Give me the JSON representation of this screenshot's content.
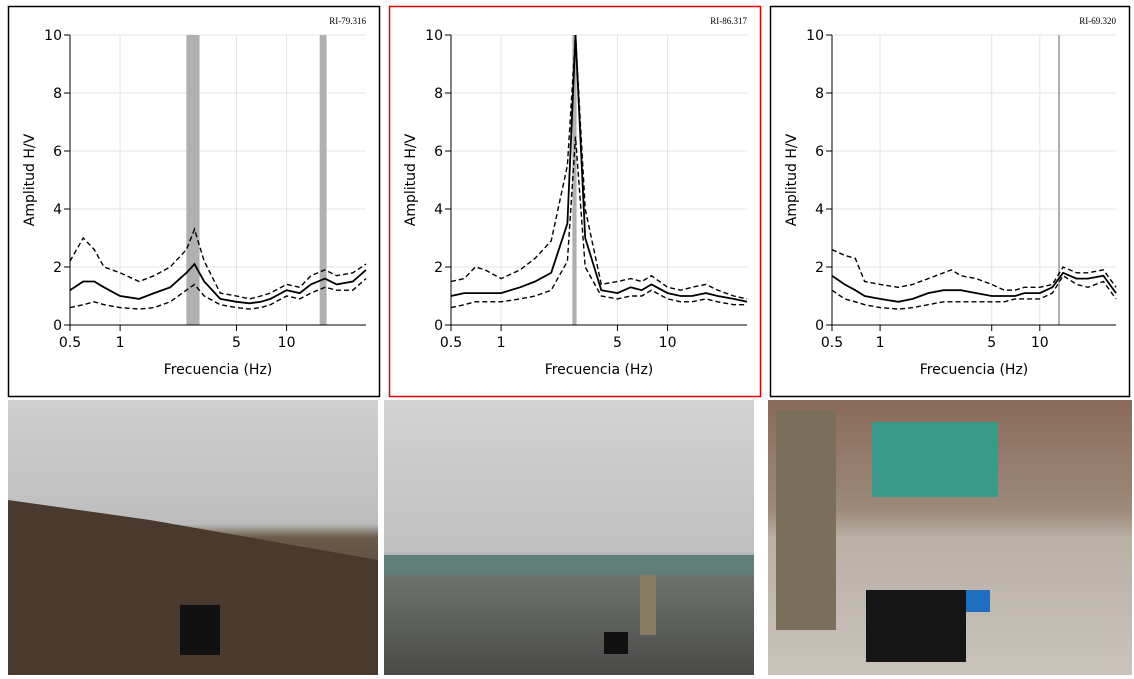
{
  "chart_data": [
    {
      "type": "line",
      "annotation": "RI-79.316",
      "x_label": "Frecuencia (Hz)",
      "y_label": "Amplitud H/V",
      "log_x": true,
      "grid": true,
      "frame_color": "#000000",
      "band_color": "#b0b0b0",
      "xlim": [
        0.5,
        30
      ],
      "xticks": [
        0.5,
        1,
        5,
        10
      ],
      "ylim": [
        0,
        10
      ],
      "yticks": [
        0,
        2,
        4,
        6,
        8,
        10
      ],
      "bands": [
        [
          2.5,
          3.0
        ],
        [
          15.8,
          17.4
        ]
      ],
      "x": [
        0.5,
        0.6,
        0.7,
        0.8,
        1,
        1.3,
        1.6,
        2,
        2.5,
        2.8,
        3.2,
        4,
        5,
        6,
        7,
        8,
        10,
        12,
        14,
        17,
        20,
        25,
        30
      ],
      "series": [
        {
          "color": "#000000",
          "dashed": false,
          "values": [
            1.2,
            1.5,
            1.5,
            1.3,
            1.0,
            0.9,
            1.1,
            1.3,
            1.8,
            2.1,
            1.5,
            0.9,
            0.8,
            0.75,
            0.8,
            0.9,
            1.2,
            1.1,
            1.4,
            1.6,
            1.4,
            1.5,
            1.9
          ]
        },
        {
          "color": "#000000",
          "dashed": true,
          "values": [
            2.2,
            3.0,
            2.6,
            2.0,
            1.8,
            1.5,
            1.7,
            2.0,
            2.6,
            3.3,
            2.2,
            1.1,
            1.0,
            0.9,
            1.0,
            1.1,
            1.4,
            1.3,
            1.7,
            1.9,
            1.7,
            1.8,
            2.1
          ]
        },
        {
          "color": "#000000",
          "dashed": true,
          "values": [
            0.6,
            0.7,
            0.8,
            0.7,
            0.6,
            0.55,
            0.6,
            0.8,
            1.2,
            1.4,
            1.0,
            0.7,
            0.6,
            0.55,
            0.6,
            0.7,
            1.0,
            0.9,
            1.1,
            1.3,
            1.2,
            1.2,
            1.6
          ]
        }
      ]
    },
    {
      "type": "line",
      "annotation": "RI-86.317",
      "x_label": "Frecuencia (Hz)",
      "y_label": "Amplitud H/V",
      "log_x": true,
      "grid": true,
      "frame_color": "#e00000",
      "band_color": "#b0b0b0",
      "xlim": [
        0.5,
        30
      ],
      "xticks": [
        0.5,
        1,
        5,
        10
      ],
      "ylim": [
        0,
        10
      ],
      "yticks": [
        0,
        2,
        4,
        6,
        8,
        10
      ],
      "bands": [
        [
          2.68,
          2.84
        ]
      ],
      "x": [
        0.5,
        0.6,
        0.7,
        0.8,
        1,
        1.3,
        1.6,
        2,
        2.5,
        2.8,
        3.2,
        4,
        5,
        6,
        7,
        8,
        10,
        12,
        14,
        17,
        20,
        25,
        30
      ],
      "series": [
        {
          "color": "#000000",
          "dashed": false,
          "values": [
            1.0,
            1.1,
            1.1,
            1.1,
            1.1,
            1.3,
            1.5,
            1.8,
            3.5,
            10,
            3.0,
            1.2,
            1.1,
            1.3,
            1.2,
            1.4,
            1.1,
            1.0,
            1.0,
            1.1,
            1.0,
            0.9,
            0.8
          ]
        },
        {
          "color": "#000000",
          "dashed": true,
          "values": [
            1.5,
            1.6,
            2.0,
            1.9,
            1.6,
            1.9,
            2.3,
            2.9,
            5.5,
            10,
            4.0,
            1.4,
            1.5,
            1.6,
            1.5,
            1.7,
            1.3,
            1.2,
            1.3,
            1.4,
            1.2,
            1.0,
            0.9
          ]
        },
        {
          "color": "#000000",
          "dashed": true,
          "values": [
            0.6,
            0.7,
            0.8,
            0.8,
            0.8,
            0.9,
            1.0,
            1.2,
            2.2,
            6.5,
            2.0,
            1.0,
            0.9,
            1.0,
            1.0,
            1.2,
            0.9,
            0.8,
            0.8,
            0.9,
            0.8,
            0.7,
            0.7
          ]
        }
      ]
    },
    {
      "type": "line",
      "annotation": "RI-69.320",
      "x_label": "Frecuencia (Hz)",
      "y_label": "Amplitud H/V",
      "log_x": true,
      "grid": true,
      "frame_color": "#000000",
      "band_color": "#b0b0b0",
      "xlim": [
        0.5,
        30
      ],
      "xticks": [
        0.5,
        1,
        5,
        10
      ],
      "ylim": [
        0,
        10
      ],
      "yticks": [
        0,
        2,
        4,
        6,
        8,
        10
      ],
      "bands": [
        [
          13.0,
          13.3
        ]
      ],
      "x": [
        0.5,
        0.6,
        0.7,
        0.8,
        1,
        1.3,
        1.6,
        2,
        2.5,
        2.8,
        3.2,
        4,
        5,
        6,
        7,
        8,
        10,
        12,
        14,
        17,
        20,
        25,
        30
      ],
      "series": [
        {
          "color": "#000000",
          "dashed": false,
          "values": [
            1.7,
            1.4,
            1.2,
            1.0,
            0.9,
            0.8,
            0.9,
            1.1,
            1.2,
            1.2,
            1.2,
            1.1,
            1.0,
            1.0,
            1.0,
            1.1,
            1.1,
            1.3,
            1.8,
            1.6,
            1.6,
            1.7,
            1.1
          ]
        },
        {
          "color": "#000000",
          "dashed": true,
          "values": [
            2.6,
            2.4,
            2.3,
            1.5,
            1.4,
            1.3,
            1.4,
            1.6,
            1.8,
            1.9,
            1.7,
            1.6,
            1.4,
            1.2,
            1.2,
            1.3,
            1.3,
            1.4,
            2.0,
            1.8,
            1.8,
            1.9,
            1.3
          ]
        },
        {
          "color": "#000000",
          "dashed": true,
          "values": [
            1.2,
            0.9,
            0.8,
            0.7,
            0.6,
            0.55,
            0.6,
            0.7,
            0.8,
            0.8,
            0.8,
            0.8,
            0.8,
            0.8,
            0.9,
            0.9,
            0.9,
            1.1,
            1.7,
            1.4,
            1.3,
            1.5,
            0.9
          ]
        }
      ]
    }
  ]
}
